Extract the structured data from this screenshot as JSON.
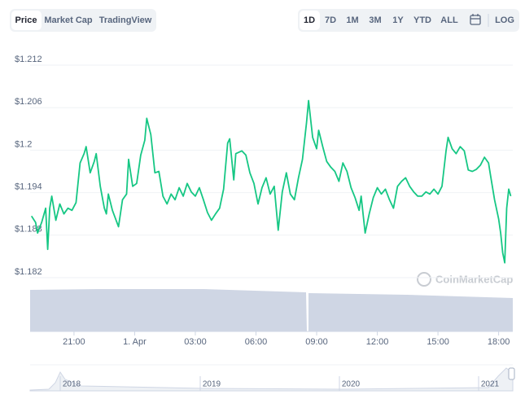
{
  "toolbar": {
    "tabs": [
      "Price",
      "Market Cap",
      "TradingView"
    ],
    "ranges": [
      "1D",
      "7D",
      "1M",
      "3M",
      "1Y",
      "YTD",
      "ALL"
    ],
    "log": "LOG"
  },
  "watermark": "CoinMarketCap",
  "navigator": {
    "labels": [
      "2018",
      "2019",
      "2020",
      "2021"
    ]
  },
  "chart_data": {
    "type": "line",
    "color": "#16c784",
    "grid": true,
    "xlim": [
      18.83,
      42.7
    ],
    "xticks": [
      {
        "value": 21,
        "label": "21:00"
      },
      {
        "value": 24,
        "label": "1. Apr"
      },
      {
        "value": 27,
        "label": "03:00"
      },
      {
        "value": 30,
        "label": "06:00"
      },
      {
        "value": 33,
        "label": "09:00"
      },
      {
        "value": 36,
        "label": "12:00"
      },
      {
        "value": 39,
        "label": "15:00"
      },
      {
        "value": 42,
        "label": "18:00"
      }
    ],
    "ylim": [
      1.182,
      1.212
    ],
    "yticks": [
      {
        "value": 1.212,
        "label": "$1.212"
      },
      {
        "value": 1.206,
        "label": "$1.206"
      },
      {
        "value": 1.2,
        "label": "$1.2"
      },
      {
        "value": 1.194,
        "label": "$1.194"
      },
      {
        "value": 1.188,
        "label": "$1.188"
      },
      {
        "value": 1.182,
        "label": "$1.182"
      }
    ],
    "x": [
      18.9,
      19.1,
      19.2,
      19.4,
      19.6,
      19.7,
      19.8,
      19.9,
      20.1,
      20.3,
      20.5,
      20.7,
      20.9,
      21.1,
      21.3,
      21.5,
      21.6,
      21.8,
      22.0,
      22.1,
      22.3,
      22.5,
      22.6,
      22.7,
      22.9,
      23.2,
      23.4,
      23.6,
      23.7,
      23.9,
      24.1,
      24.3,
      24.5,
      24.6,
      24.8,
      25.0,
      25.2,
      25.4,
      25.6,
      25.8,
      26.0,
      26.2,
      26.4,
      26.6,
      26.8,
      27.0,
      27.2,
      27.4,
      27.6,
      27.8,
      28.0,
      28.2,
      28.4,
      28.6,
      28.7,
      28.9,
      29.0,
      29.3,
      29.5,
      29.7,
      29.9,
      30.1,
      30.3,
      30.5,
      30.7,
      30.9,
      31.1,
      31.3,
      31.5,
      31.7,
      31.9,
      32.1,
      32.3,
      32.5,
      32.6,
      32.8,
      33.0,
      33.1,
      33.3,
      33.5,
      33.7,
      33.9,
      34.1,
      34.3,
      34.5,
      34.7,
      34.9,
      35.1,
      35.2,
      35.4,
      35.6,
      35.8,
      36.0,
      36.2,
      36.4,
      36.6,
      36.8,
      37.0,
      37.2,
      37.4,
      37.6,
      37.8,
      38.0,
      38.2,
      38.4,
      38.6,
      38.8,
      39.0,
      39.2,
      39.4,
      39.5,
      39.7,
      39.9,
      40.1,
      40.3,
      40.5,
      40.7,
      40.9,
      41.1,
      41.3,
      41.5,
      41.6,
      41.8,
      42.0,
      42.1,
      42.2,
      42.3,
      42.4,
      42.5,
      42.6
    ],
    "values": [
      1.1907,
      1.1898,
      1.1883,
      1.1898,
      1.1918,
      1.186,
      1.1918,
      1.1935,
      1.1901,
      1.1924,
      1.191,
      1.1918,
      1.1915,
      1.1926,
      1.1982,
      1.1995,
      1.2005,
      1.1968,
      1.1984,
      1.1995,
      1.1949,
      1.1918,
      1.191,
      1.1938,
      1.1915,
      1.1892,
      1.193,
      1.1938,
      1.1987,
      1.1949,
      1.1953,
      1.1993,
      1.2014,
      1.2045,
      1.2022,
      1.1968,
      1.197,
      1.1935,
      1.1924,
      1.1938,
      1.193,
      1.1947,
      1.1935,
      1.1953,
      1.1941,
      1.1935,
      1.1947,
      1.193,
      1.1912,
      1.1901,
      1.191,
      1.1918,
      1.1945,
      1.201,
      1.2016,
      1.1958,
      1.1995,
      1.1999,
      1.1993,
      1.1968,
      1.1953,
      1.1924,
      1.1947,
      1.1961,
      1.1938,
      1.1949,
      1.1887,
      1.1941,
      1.1968,
      1.1938,
      1.193,
      1.1961,
      1.1987,
      1.2039,
      1.207,
      1.2018,
      1.2002,
      1.2028,
      1.2005,
      1.1984,
      1.1976,
      1.197,
      1.1956,
      1.1982,
      1.197,
      1.1947,
      1.1933,
      1.1915,
      1.1935,
      1.1883,
      1.191,
      1.1933,
      1.1947,
      1.1938,
      1.1945,
      1.193,
      1.1918,
      1.1949,
      1.1956,
      1.1961,
      1.1949,
      1.1941,
      1.1935,
      1.1935,
      1.1941,
      1.1938,
      1.1945,
      1.1938,
      1.1949,
      1.1999,
      1.2018,
      1.2002,
      1.1995,
      1.2005,
      1.1999,
      1.1972,
      1.197,
      1.1973,
      1.1979,
      1.199,
      1.1982,
      1.1964,
      1.193,
      1.1903,
      1.1883,
      1.1855,
      1.1841,
      1.1918,
      1.1945,
      1.1935
    ]
  }
}
